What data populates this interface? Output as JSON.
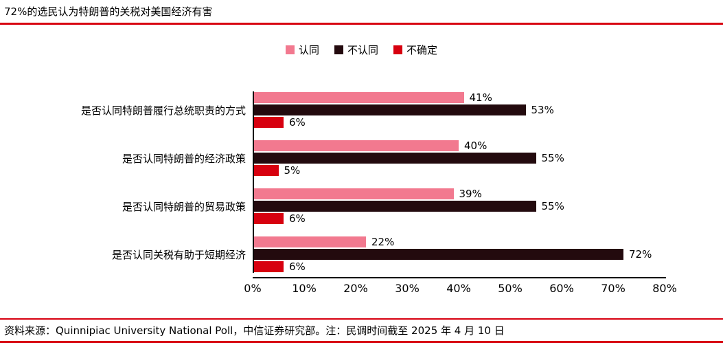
{
  "title": "72%的选民认为特朗普的关税对美国经济有害",
  "source_note": "资料来源：Quinnipiac University National Poll，中信证券研究部。注：民调时间截至 2025 年 4 月 10 日",
  "colors": {
    "accent_red": "#d7000f",
    "agree_pink": "#f2798f",
    "disagree_dark": "#230a0e",
    "axis_black": "#000000"
  },
  "chart_data": {
    "type": "bar",
    "orientation": "horizontal",
    "title": "72%的选民认为特朗普的关税对美国经济有害",
    "categories": [
      "是否认同特朗普履行总统职责的方式",
      "是否认同特朗普的经济政策",
      "是否认同特朗普的贸易政策",
      "是否认同关税有助于短期经济"
    ],
    "series": [
      {
        "name": "认同",
        "color": "#f2798f",
        "values": [
          41,
          40,
          39,
          22
        ]
      },
      {
        "name": "不认同",
        "color": "#230a0e",
        "values": [
          53,
          55,
          55,
          72
        ]
      },
      {
        "name": "不确定",
        "color": "#d7000f",
        "values": [
          6,
          5,
          6,
          6
        ]
      }
    ],
    "xlim": [
      0,
      80
    ],
    "xticks": [
      "0%",
      "10%",
      "20%",
      "30%",
      "40%",
      "50%",
      "60%",
      "70%",
      "80%"
    ],
    "value_suffix": "%",
    "legend_position": "top",
    "grid": false
  }
}
